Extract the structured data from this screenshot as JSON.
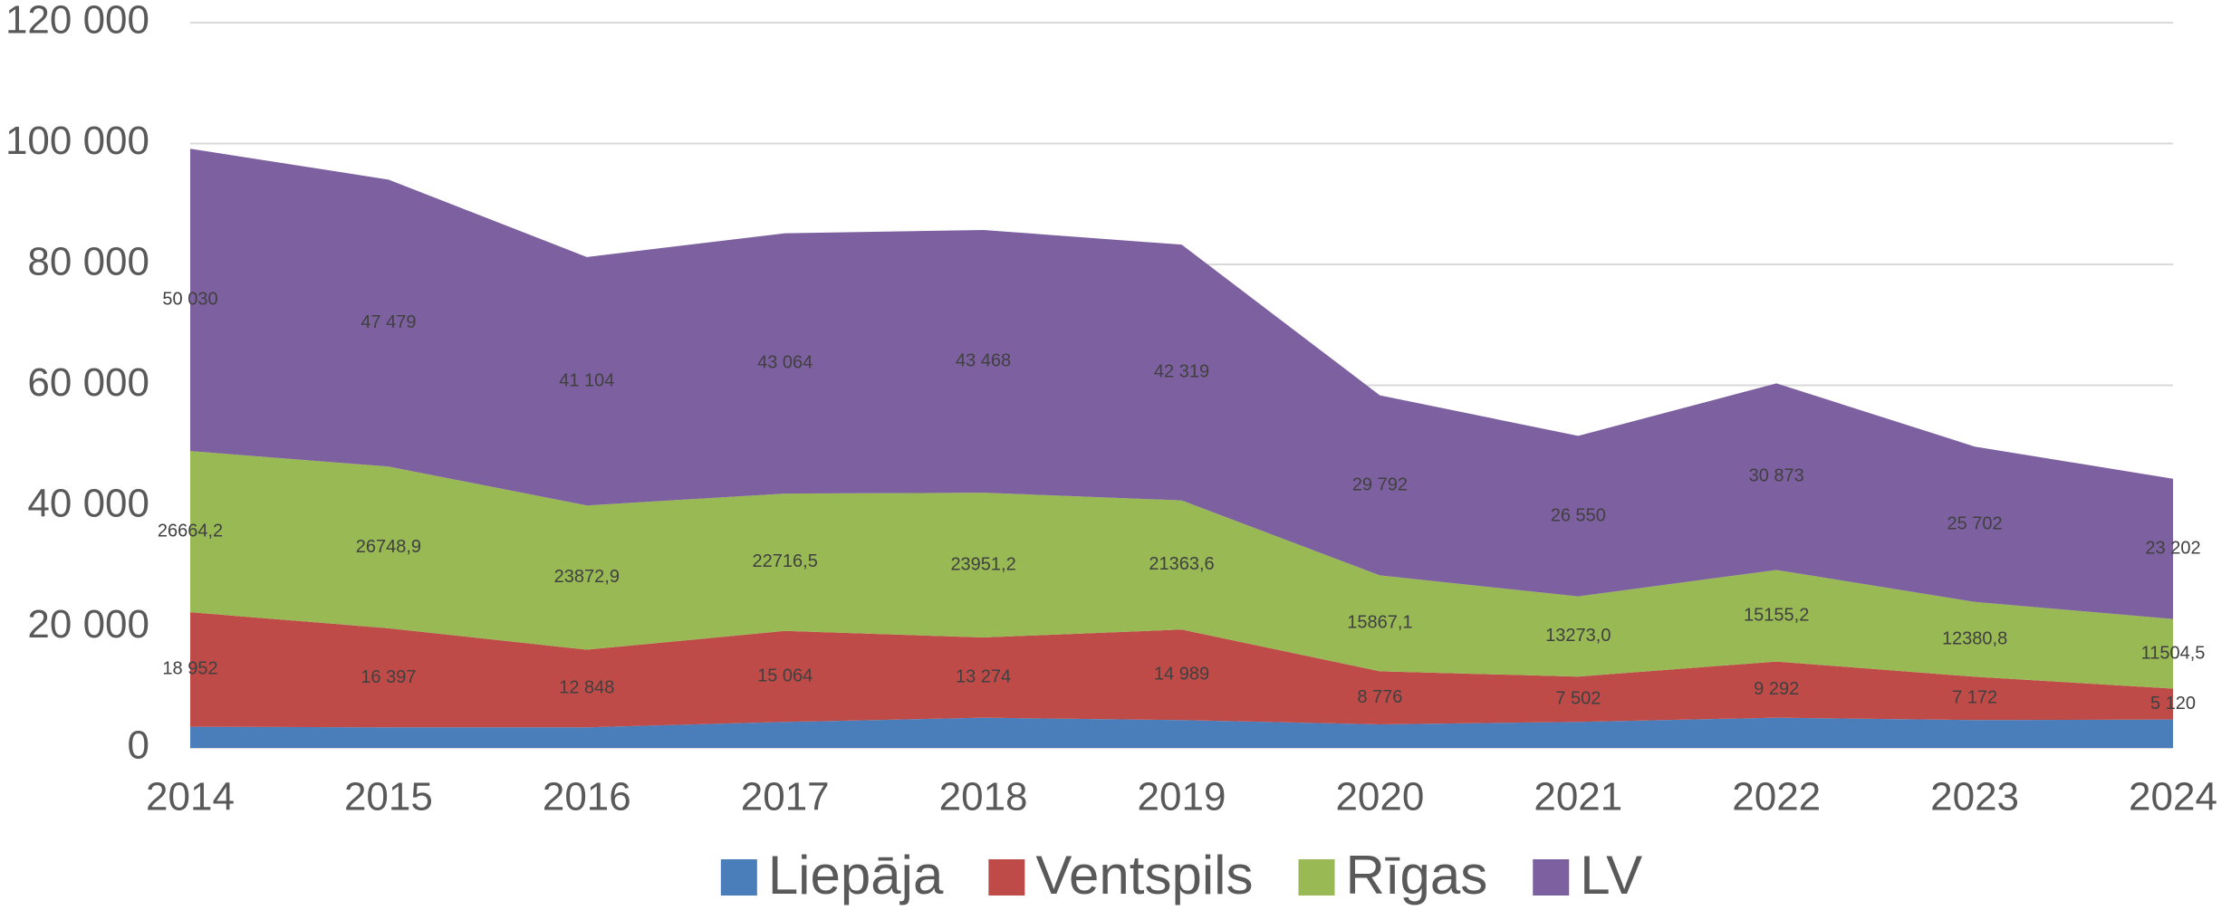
{
  "chart_data": {
    "type": "stacked_area",
    "categories": [
      "2014",
      "2015",
      "2016",
      "2017",
      "2018",
      "2019",
      "2020",
      "2021",
      "2022",
      "2023",
      "2024"
    ],
    "series": [
      {
        "name": "Liepāja",
        "color": "#4a7ebb",
        "values": [
          3500,
          3400,
          3400,
          4300,
          5000,
          4600,
          3900,
          4300,
          5000,
          4600,
          4700
        ]
      },
      {
        "name": "Ventspils",
        "color": "#be4b48",
        "values": [
          18952,
          16397,
          12848,
          15064,
          13274,
          14989,
          8776,
          7502,
          9292,
          7172,
          5120
        ],
        "value_labels": [
          "18 952",
          "16 397",
          "12 848",
          "15 064",
          "13 274",
          "14 989",
          "8 776",
          "7 502",
          "9 292",
          "7 172",
          "5 120"
        ]
      },
      {
        "name": "Rīgas",
        "color": "#98b954",
        "values": [
          26664.2,
          26748.9,
          23872.9,
          22716.5,
          23951.2,
          21363.6,
          15867.1,
          13273.0,
          15155.2,
          12380.8,
          11504.5
        ],
        "value_labels": [
          "26664,2",
          "26748,9",
          "23872,9",
          "22716,5",
          "23951,2",
          "21363,6",
          "15867,1",
          "13273,0",
          "15155,2",
          "12380,8",
          "11504,5"
        ]
      },
      {
        "name": "LV",
        "color": "#7d60a0",
        "values": [
          50030,
          47479,
          41104,
          43064,
          43468,
          42319,
          29792,
          26550,
          30873,
          25702,
          23202
        ],
        "value_labels": [
          "50 030",
          "47 479",
          "41 104",
          "43 064",
          "43 468",
          "42 319",
          "29 792",
          "26 550",
          "30 873",
          "25 702",
          "23 202"
        ]
      }
    ],
    "ylim": [
      0,
      120000
    ],
    "yticks": [
      0,
      {
        "value": 20000,
        "label": "20 000"
      },
      {
        "value": 40000,
        "label": "40 000"
      },
      {
        "value": 60000,
        "label": "60 000"
      },
      {
        "value": 80000,
        "label": "80 000"
      },
      {
        "value": 100000,
        "label": "100 000"
      },
      {
        "value": 120000,
        "label": "120 000"
      }
    ],
    "grid": true,
    "legend": "bottom"
  }
}
